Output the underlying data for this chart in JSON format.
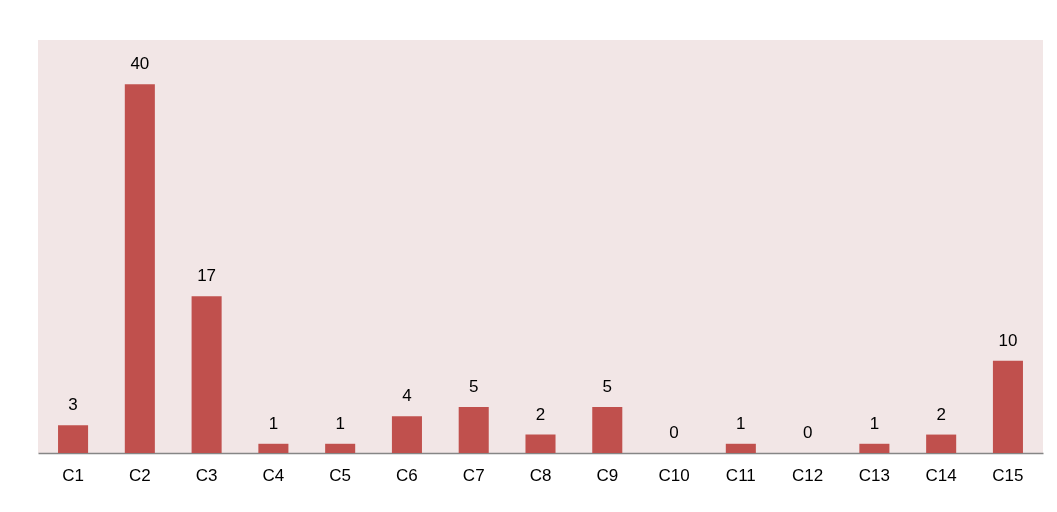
{
  "chart_data": {
    "type": "bar",
    "categories": [
      "C1",
      "C2",
      "C3",
      "C4",
      "C5",
      "C6",
      "C7",
      "C8",
      "C9",
      "C10",
      "C11",
      "C12",
      "C13",
      "C14",
      "C15"
    ],
    "values": [
      3,
      40,
      17,
      1,
      1,
      4,
      5,
      2,
      5,
      0,
      1,
      0,
      1,
      2,
      10
    ],
    "color": "#c0504d",
    "data_labels": true,
    "grid": false
  }
}
